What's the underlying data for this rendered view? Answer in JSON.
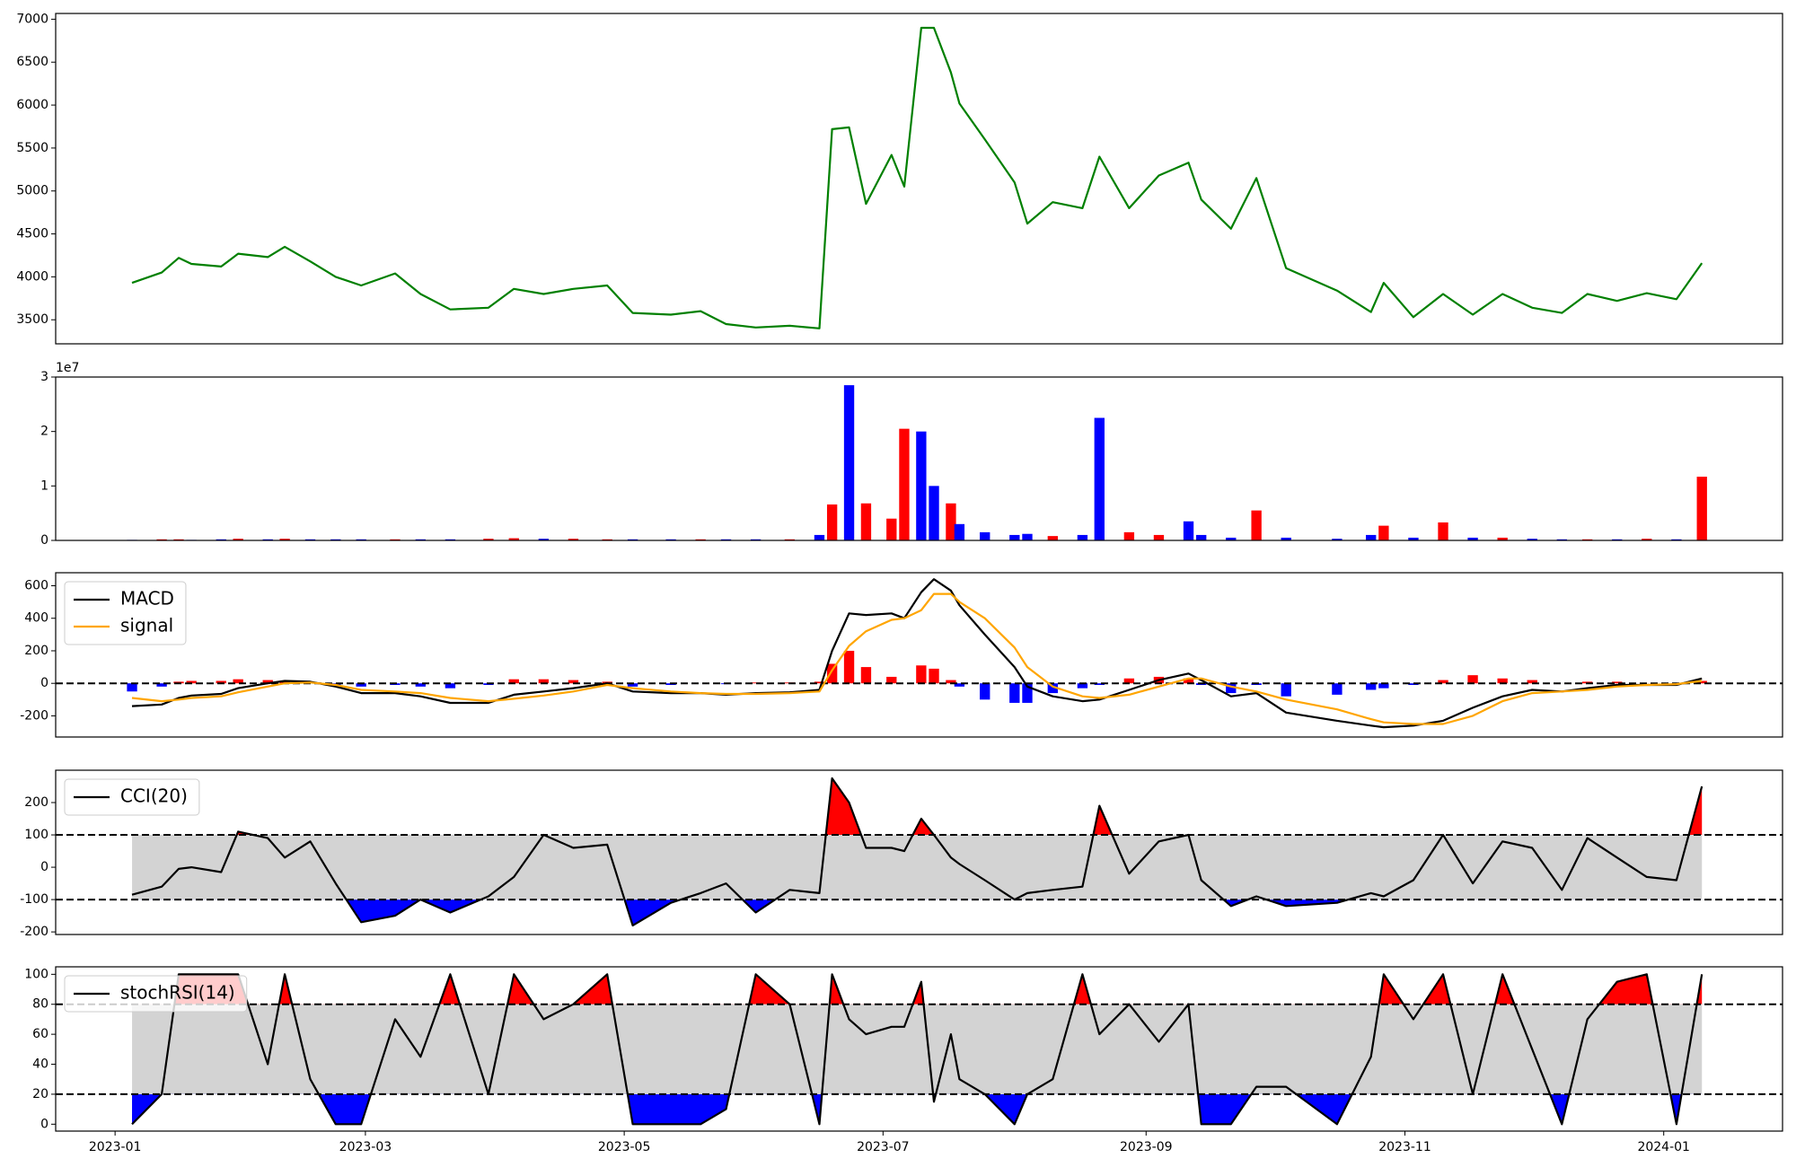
{
  "chart_data": [
    {
      "type": "line",
      "x": [
        "2023-01-05",
        "2023-01-12",
        "2023-01-16",
        "2023-01-19",
        "2023-01-26",
        "2023-01-30",
        "2023-02-06",
        "2023-02-10",
        "2023-02-16",
        "2023-02-22",
        "2023-02-28",
        "2023-03-08",
        "2023-03-14",
        "2023-03-21",
        "2023-03-30",
        "2023-04-05",
        "2023-04-12",
        "2023-04-19",
        "2023-04-27",
        "2023-05-03",
        "2023-05-12",
        "2023-05-19",
        "2023-05-25",
        "2023-06-01",
        "2023-06-09",
        "2023-06-16",
        "2023-06-19",
        "2023-06-23",
        "2023-06-27",
        "2023-07-03",
        "2023-07-06",
        "2023-07-10",
        "2023-07-13",
        "2023-07-17",
        "2023-07-19",
        "2023-07-25",
        "2023-08-01",
        "2023-08-04",
        "2023-08-10",
        "2023-08-17",
        "2023-08-21",
        "2023-08-28",
        "2023-09-04",
        "2023-09-11",
        "2023-09-14",
        "2023-09-21",
        "2023-09-27",
        "2023-10-04",
        "2023-10-16",
        "2023-10-24",
        "2023-10-27",
        "2023-11-03",
        "2023-11-10",
        "2023-11-17",
        "2023-11-24",
        "2023-12-01",
        "2023-12-08",
        "2023-12-14",
        "2023-12-21",
        "2023-12-28",
        "2024-01-04",
        "2024-01-10"
      ],
      "xlim": [
        "2022-12-18",
        "2024-01-29"
      ],
      "series": [
        {
          "color": "green",
          "values": [
            3930,
            4050,
            4220,
            4150,
            4120,
            4270,
            4230,
            4350,
            4180,
            4000,
            3900,
            4040,
            3800,
            3620,
            3640,
            3860,
            3800,
            3860,
            3900,
            3580,
            3560,
            3600,
            3450,
            3410,
            3430,
            3400,
            5720,
            5740,
            4850,
            5420,
            5050,
            6900,
            6900,
            6380,
            6020,
            5600,
            5100,
            4620,
            4870,
            4800,
            5400,
            4800,
            5180,
            5330,
            4900,
            4560,
            5150,
            4100,
            3840,
            3590,
            3930,
            3530,
            3800,
            3560,
            3800,
            3640,
            3580,
            3800,
            3720,
            3810,
            3740,
            4160
          ]
        }
      ],
      "ylim": [
        3220,
        7067
      ],
      "yticks": [
        3500,
        4000,
        4500,
        5000,
        5500,
        6000,
        6500,
        7000
      ]
    },
    {
      "type": "bar",
      "x": [
        "2023-01-05",
        "2023-01-12",
        "2023-01-16",
        "2023-01-19",
        "2023-01-26",
        "2023-01-30",
        "2023-02-06",
        "2023-02-10",
        "2023-02-16",
        "2023-02-22",
        "2023-02-28",
        "2023-03-08",
        "2023-03-14",
        "2023-03-21",
        "2023-03-30",
        "2023-04-05",
        "2023-04-12",
        "2023-04-19",
        "2023-04-27",
        "2023-05-03",
        "2023-05-12",
        "2023-05-19",
        "2023-05-25",
        "2023-06-01",
        "2023-06-09",
        "2023-06-16",
        "2023-06-19",
        "2023-06-23",
        "2023-06-27",
        "2023-07-03",
        "2023-07-06",
        "2023-07-10",
        "2023-07-13",
        "2023-07-17",
        "2023-07-19",
        "2023-07-25",
        "2023-08-01",
        "2023-08-04",
        "2023-08-10",
        "2023-08-17",
        "2023-08-21",
        "2023-08-28",
        "2023-09-04",
        "2023-09-11",
        "2023-09-14",
        "2023-09-21",
        "2023-09-27",
        "2023-10-04",
        "2023-10-16",
        "2023-10-24",
        "2023-10-27",
        "2023-11-03",
        "2023-11-10",
        "2023-11-17",
        "2023-11-24",
        "2023-12-01",
        "2023-12-08",
        "2023-12-14",
        "2023-12-21",
        "2023-12-28",
        "2024-01-04",
        "2024-01-10"
      ],
      "xlim": [
        "2022-12-18",
        "2024-01-29"
      ],
      "values": [
        0.01,
        0.02,
        0.02,
        0.01,
        0.02,
        0.03,
        0.02,
        0.03,
        0.02,
        0.02,
        0.02,
        0.02,
        0.02,
        0.02,
        0.03,
        0.04,
        0.03,
        0.03,
        0.02,
        0.02,
        0.02,
        0.02,
        0.02,
        0.02,
        0.02,
        0.1,
        0.66,
        2.85,
        0.68,
        0.4,
        2.05,
        2.0,
        1.0,
        0.68,
        0.3,
        0.15,
        0.1,
        0.12,
        0.08,
        0.1,
        2.25,
        0.15,
        0.1,
        0.35,
        0.1,
        0.05,
        0.55,
        0.05,
        0.03,
        0.1,
        0.27,
        0.05,
        0.33,
        0.05,
        0.05,
        0.03,
        0.02,
        0.02,
        0.02,
        0.03,
        0.02,
        1.17
      ],
      "colors": [
        "blue",
        "red",
        "red",
        "blue",
        "blue",
        "red",
        "blue",
        "red",
        "blue",
        "blue",
        "blue",
        "red",
        "blue",
        "blue",
        "red",
        "red",
        "blue",
        "red",
        "red",
        "blue",
        "blue",
        "red",
        "blue",
        "blue",
        "red",
        "blue",
        "red",
        "blue",
        "red",
        "red",
        "red",
        "blue",
        "blue",
        "red",
        "blue",
        "blue",
        "blue",
        "blue",
        "red",
        "blue",
        "blue",
        "red",
        "red",
        "blue",
        "blue",
        "blue",
        "red",
        "blue",
        "blue",
        "blue",
        "red",
        "blue",
        "red",
        "blue",
        "red",
        "blue",
        "blue",
        "red",
        "blue",
        "red",
        "blue",
        "red"
      ],
      "offset_label": "1e7",
      "ylim": [
        0,
        3
      ],
      "yticks": [
        0,
        1,
        2,
        3
      ]
    },
    {
      "type": "line",
      "x": [
        "2023-01-05",
        "2023-01-12",
        "2023-01-16",
        "2023-01-19",
        "2023-01-26",
        "2023-01-30",
        "2023-02-06",
        "2023-02-10",
        "2023-02-16",
        "2023-02-22",
        "2023-02-28",
        "2023-03-08",
        "2023-03-14",
        "2023-03-21",
        "2023-03-30",
        "2023-04-05",
        "2023-04-12",
        "2023-04-19",
        "2023-04-27",
        "2023-05-03",
        "2023-05-12",
        "2023-05-19",
        "2023-05-25",
        "2023-06-01",
        "2023-06-09",
        "2023-06-16",
        "2023-06-19",
        "2023-06-23",
        "2023-06-27",
        "2023-07-03",
        "2023-07-06",
        "2023-07-10",
        "2023-07-13",
        "2023-07-17",
        "2023-07-19",
        "2023-07-25",
        "2023-08-01",
        "2023-08-04",
        "2023-08-10",
        "2023-08-17",
        "2023-08-21",
        "2023-08-28",
        "2023-09-04",
        "2023-09-11",
        "2023-09-14",
        "2023-09-21",
        "2023-09-27",
        "2023-10-04",
        "2023-10-16",
        "2023-10-24",
        "2023-10-27",
        "2023-11-03",
        "2023-11-10",
        "2023-11-17",
        "2023-11-24",
        "2023-12-01",
        "2023-12-08",
        "2023-12-14",
        "2023-12-21",
        "2023-12-28",
        "2024-01-04",
        "2024-01-10"
      ],
      "xlim": [
        "2022-12-18",
        "2024-01-29"
      ],
      "series": [
        {
          "name": "MACD",
          "color": "black",
          "values": [
            -140,
            -130,
            -90,
            -75,
            -65,
            -30,
            0,
            15,
            10,
            -20,
            -60,
            -60,
            -80,
            -120,
            -120,
            -70,
            -50,
            -30,
            0,
            -50,
            -60,
            -60,
            -70,
            -60,
            -55,
            -40,
            200,
            430,
            420,
            430,
            400,
            560,
            640,
            570,
            480,
            300,
            100,
            -20,
            -80,
            -110,
            -100,
            -40,
            20,
            60,
            20,
            -80,
            -60,
            -180,
            -230,
            -260,
            -270,
            -260,
            -230,
            -150,
            -80,
            -40,
            -50,
            -30,
            -10,
            -10,
            -10,
            30
          ]
        },
        {
          "name": "signal",
          "color": "orange",
          "values": [
            -90,
            -110,
            -100,
            -90,
            -80,
            -55,
            -20,
            0,
            5,
            -10,
            -40,
            -50,
            -60,
            -90,
            -110,
            -95,
            -75,
            -50,
            -10,
            -30,
            -50,
            -60,
            -65,
            -65,
            -60,
            -50,
            80,
            230,
            320,
            390,
            400,
            450,
            550,
            550,
            500,
            400,
            220,
            100,
            -20,
            -80,
            -90,
            -70,
            -20,
            30,
            30,
            -20,
            -50,
            -100,
            -160,
            -220,
            -240,
            -250,
            -250,
            -200,
            -110,
            -60,
            -50,
            -40,
            -20,
            -10,
            -5,
            15
          ]
        }
      ],
      "histogram": {
        "up_color": "red",
        "down_color": "blue",
        "values": [
          -50,
          -20,
          10,
          15,
          15,
          25,
          20,
          15,
          5,
          -10,
          -20,
          -10,
          -20,
          -30,
          -10,
          25,
          25,
          20,
          10,
          -20,
          -10,
          0,
          -5,
          5,
          5,
          10,
          120,
          200,
          100,
          40,
          0,
          110,
          90,
          20,
          -20,
          -100,
          -120,
          -120,
          -60,
          -30,
          -10,
          30,
          40,
          30,
          -10,
          -60,
          -10,
          -80,
          -70,
          -40,
          -30,
          -10,
          20,
          50,
          30,
          20,
          0,
          10,
          10,
          0,
          -5,
          15
        ]
      },
      "thresholds": [
        0
      ],
      "legend": "upper left",
      "ylim": [
        -330,
        680
      ],
      "yticks": [
        -200,
        0,
        200,
        400,
        600
      ]
    },
    {
      "type": "line",
      "x": [
        "2023-01-05",
        "2023-01-12",
        "2023-01-16",
        "2023-01-19",
        "2023-01-26",
        "2023-01-30",
        "2023-02-06",
        "2023-02-10",
        "2023-02-16",
        "2023-02-22",
        "2023-02-28",
        "2023-03-08",
        "2023-03-14",
        "2023-03-21",
        "2023-03-30",
        "2023-04-05",
        "2023-04-12",
        "2023-04-19",
        "2023-04-27",
        "2023-05-03",
        "2023-05-12",
        "2023-05-19",
        "2023-05-25",
        "2023-06-01",
        "2023-06-09",
        "2023-06-16",
        "2023-06-19",
        "2023-06-23",
        "2023-06-27",
        "2023-07-03",
        "2023-07-06",
        "2023-07-10",
        "2023-07-13",
        "2023-07-17",
        "2023-07-19",
        "2023-07-25",
        "2023-08-01",
        "2023-08-04",
        "2023-08-10",
        "2023-08-17",
        "2023-08-21",
        "2023-08-28",
        "2023-09-04",
        "2023-09-11",
        "2023-09-14",
        "2023-09-21",
        "2023-09-27",
        "2023-10-04",
        "2023-10-16",
        "2023-10-24",
        "2023-10-27",
        "2023-11-03",
        "2023-11-10",
        "2023-11-17",
        "2023-11-24",
        "2023-12-01",
        "2023-12-08",
        "2023-12-14",
        "2023-12-21",
        "2023-12-28",
        "2024-01-04",
        "2024-01-10"
      ],
      "xlim": [
        "2022-12-18",
        "2024-01-29"
      ],
      "series": [
        {
          "name": "CCI(20)",
          "color": "black",
          "values": [
            -85,
            -60,
            -5,
            0,
            -15,
            110,
            90,
            30,
            80,
            -50,
            -170,
            -150,
            -100,
            -140,
            -90,
            -30,
            100,
            60,
            70,
            -180,
            -110,
            -80,
            -50,
            -140,
            -70,
            -80,
            275,
            200,
            60,
            60,
            50,
            150,
            100,
            30,
            10,
            -40,
            -100,
            -80,
            -70,
            -60,
            190,
            -20,
            80,
            100,
            -40,
            -120,
            -90,
            -120,
            -110,
            -80,
            -90,
            -40,
            100,
            -50,
            80,
            60,
            -70,
            90,
            30,
            -30,
            -40,
            250
          ]
        }
      ],
      "thresholds": [
        -100,
        100
      ],
      "fill_colors": {
        "above": "red",
        "below": "blue",
        "band": "lightgray"
      },
      "legend": "upper left",
      "ylim": [
        -208,
        300
      ],
      "yticks": [
        -200,
        -100,
        0,
        100,
        200
      ]
    },
    {
      "type": "line",
      "x": [
        "2023-01-05",
        "2023-01-12",
        "2023-01-16",
        "2023-01-19",
        "2023-01-26",
        "2023-01-30",
        "2023-02-06",
        "2023-02-10",
        "2023-02-16",
        "2023-02-22",
        "2023-02-28",
        "2023-03-08",
        "2023-03-14",
        "2023-03-21",
        "2023-03-30",
        "2023-04-05",
        "2023-04-12",
        "2023-04-19",
        "2023-04-27",
        "2023-05-03",
        "2023-05-12",
        "2023-05-19",
        "2023-05-25",
        "2023-06-01",
        "2023-06-09",
        "2023-06-16",
        "2023-06-19",
        "2023-06-23",
        "2023-06-27",
        "2023-07-03",
        "2023-07-06",
        "2023-07-10",
        "2023-07-13",
        "2023-07-17",
        "2023-07-19",
        "2023-07-25",
        "2023-08-01",
        "2023-08-04",
        "2023-08-10",
        "2023-08-17",
        "2023-08-21",
        "2023-08-28",
        "2023-09-04",
        "2023-09-11",
        "2023-09-14",
        "2023-09-21",
        "2023-09-27",
        "2023-10-04",
        "2023-10-16",
        "2023-10-24",
        "2023-10-27",
        "2023-11-03",
        "2023-11-10",
        "2023-11-17",
        "2023-11-24",
        "2023-12-01",
        "2023-12-08",
        "2023-12-14",
        "2023-12-21",
        "2023-12-28",
        "2024-01-04",
        "2024-01-10"
      ],
      "xlim": [
        "2022-12-18",
        "2024-01-29"
      ],
      "series": [
        {
          "name": "stochRSI(14)",
          "color": "black",
          "values": [
            0,
            20,
            100,
            100,
            100,
            100,
            40,
            100,
            30,
            0,
            0,
            70,
            45,
            100,
            20,
            100,
            70,
            80,
            100,
            0,
            0,
            0,
            10,
            100,
            80,
            0,
            100,
            70,
            60,
            65,
            65,
            95,
            15,
            60,
            30,
            20,
            0,
            20,
            30,
            100,
            60,
            80,
            55,
            80,
            0,
            0,
            25,
            25,
            0,
            45,
            100,
            70,
            100,
            20,
            100,
            50,
            0,
            70,
            95,
            100,
            0,
            100
          ]
        }
      ],
      "thresholds": [
        20,
        80
      ],
      "fill_colors": {
        "above": "red",
        "below": "blue",
        "band": "lightgray"
      },
      "legend": "upper left",
      "ylim": [
        -4.6,
        105
      ],
      "yticks": [
        0,
        20,
        40,
        60,
        80,
        100
      ],
      "xticks": [
        {
          "value": "2023-01-01",
          "label": "2023-01"
        },
        {
          "value": "2023-03-01",
          "label": "2023-03"
        },
        {
          "value": "2023-05-01",
          "label": "2023-05"
        },
        {
          "value": "2023-07-01",
          "label": "2023-07"
        },
        {
          "value": "2023-09-01",
          "label": "2023-09"
        },
        {
          "value": "2023-11-01",
          "label": "2023-11"
        },
        {
          "value": "2024-01-01",
          "label": "2024-01"
        }
      ]
    }
  ]
}
